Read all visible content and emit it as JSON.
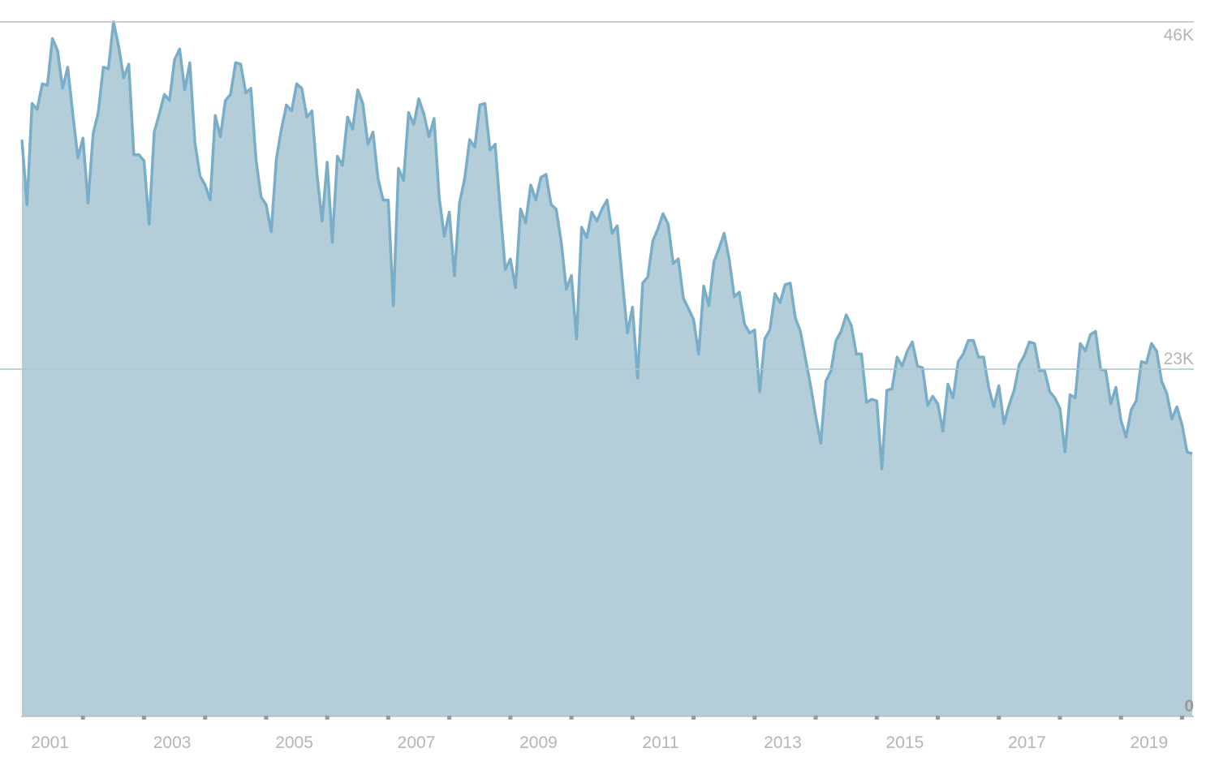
{
  "chart_data": {
    "type": "area",
    "categories": [
      null,
      null,
      null,
      null,
      null,
      null,
      "2001",
      null,
      null,
      null,
      null,
      null,
      null,
      null,
      null,
      null,
      null,
      null,
      null,
      null,
      null,
      null,
      null,
      null,
      null,
      null,
      null,
      null,
      null,
      null,
      "2003",
      null,
      null,
      null,
      null,
      null,
      null,
      null,
      null,
      null,
      null,
      null,
      null,
      null,
      null,
      null,
      null,
      null,
      null,
      null,
      null,
      null,
      null,
      null,
      "2005",
      null,
      null,
      null,
      null,
      null,
      null,
      null,
      null,
      null,
      null,
      null,
      null,
      null,
      null,
      null,
      null,
      null,
      null,
      null,
      null,
      null,
      null,
      null,
      "2007",
      null,
      null,
      null,
      null,
      null,
      null,
      null,
      null,
      null,
      null,
      null,
      null,
      null,
      null,
      null,
      null,
      null,
      null,
      null,
      null,
      null,
      null,
      null,
      "2009",
      null,
      null,
      null,
      null,
      null,
      null,
      null,
      null,
      null,
      null,
      null,
      null,
      null,
      null,
      null,
      null,
      null,
      null,
      null,
      null,
      null,
      null,
      null,
      "2011",
      null,
      null,
      null,
      null,
      null,
      null,
      null,
      null,
      null,
      null,
      null,
      null,
      null,
      null,
      null,
      null,
      null,
      null,
      null,
      null,
      null,
      null,
      null,
      "2013",
      null,
      null,
      null,
      null,
      null,
      null,
      null,
      null,
      null,
      null,
      null,
      null,
      null,
      null,
      null,
      null,
      null,
      null,
      null,
      null,
      null,
      null,
      null,
      "2015",
      null,
      null,
      null,
      null,
      null,
      null,
      null,
      null,
      null,
      null,
      null,
      null,
      null,
      null,
      null,
      null,
      null,
      null,
      null,
      null,
      null,
      null,
      null,
      "2017",
      null,
      null,
      null,
      null,
      null,
      null,
      null,
      null,
      null,
      null,
      null,
      null,
      null,
      null,
      null,
      null,
      null,
      null,
      null,
      null,
      null,
      null,
      null,
      "2019",
      null,
      null,
      null,
      null,
      null,
      null,
      null,
      null
    ],
    "values": [
      38200,
      33900,
      40600,
      40200,
      41900,
      41800,
      44900,
      44100,
      41600,
      43000,
      39900,
      37000,
      38300,
      34000,
      38600,
      40000,
      43000,
      42900,
      46000,
      44400,
      42300,
      43200,
      37200,
      37200,
      36800,
      32600,
      38700,
      39900,
      41200,
      40800,
      43500,
      44200,
      41500,
      43300,
      38000,
      35800,
      35200,
      34200,
      39800,
      38400,
      40800,
      41200,
      43300,
      43200,
      41300,
      41600,
      36900,
      34400,
      33900,
      32100,
      36900,
      38900,
      40500,
      40100,
      41900,
      41600,
      39700,
      40100,
      35900,
      32800,
      36700,
      31400,
      37100,
      36500,
      39700,
      38900,
      41500,
      40600,
      37900,
      38700,
      35600,
      34200,
      34200,
      27200,
      36300,
      35500,
      40000,
      39200,
      40900,
      39900,
      38400,
      39600,
      34400,
      31800,
      33400,
      29200,
      34000,
      35600,
      38200,
      37700,
      40500,
      40600,
      37500,
      37900,
      33600,
      29600,
      30300,
      28400,
      33600,
      32700,
      35200,
      34200,
      35700,
      35900,
      33900,
      33600,
      31400,
      28300,
      29200,
      25000,
      32400,
      31700,
      33400,
      32800,
      33600,
      34200,
      32000,
      32500,
      28900,
      25400,
      27100,
      22400,
      28700,
      29100,
      31500,
      32300,
      33300,
      32600,
      30000,
      30300,
      27700,
      27000,
      26300,
      24000,
      28500,
      27200,
      30100,
      31000,
      32000,
      30300,
      27800,
      28100,
      26000,
      25400,
      25600,
      21500,
      25000,
      25600,
      28000,
      27400,
      28600,
      28700,
      26400,
      25500,
      23700,
      21900,
      19900,
      18100,
      22200,
      22900,
      24900,
      25500,
      26600,
      25900,
      24000,
      24000,
      20800,
      21000,
      20900,
      16400,
      21600,
      21700,
      23800,
      23200,
      24200,
      24800,
      23200,
      23100,
      20600,
      21200,
      20700,
      18900,
      22000,
      21100,
      23500,
      24000,
      24900,
      24900,
      23800,
      23800,
      21800,
      20500,
      21900,
      19400,
      20600,
      21600,
      23300,
      23900,
      24800,
      24700,
      22900,
      22900,
      21500,
      21100,
      20400,
      17500,
      21300,
      21100,
      24700,
      24200,
      25300,
      25500,
      23000,
      22900,
      20700,
      21800,
      19600,
      18500,
      20300,
      20900,
      23500,
      23400,
      24700,
      24200,
      22200,
      21400,
      19700,
      20500,
      19300,
      17500,
      17400
    ],
    "color": "#7aaec8",
    "fill": "#b3cdd9",
    "ylim": [
      0,
      46000
    ],
    "yticks": [
      0,
      {
        "value": 23000,
        "label": "23K"
      },
      {
        "value": 46000,
        "label": "46K"
      }
    ],
    "grid": true
  }
}
